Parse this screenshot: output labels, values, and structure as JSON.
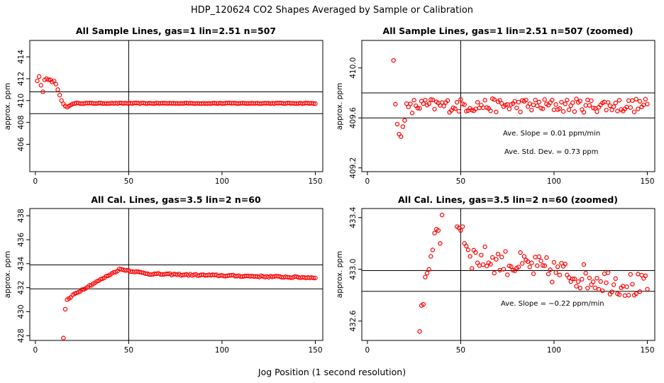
{
  "figure": {
    "title": "HDP_120624  CO2 Shapes Averaged by Sample or Calibration",
    "xlabel": "Jog Position (1 second resolution)"
  },
  "colors": {
    "points": "#ff0000",
    "lines": "#000000"
  },
  "chart_data": [
    {
      "type": "scatter",
      "title": "All Sample Lines, gas=1 lin=2.51 n=507",
      "ylabel": "approx. ppm",
      "xlim": [
        -3,
        154
      ],
      "ylim": [
        403.5,
        415.5
      ],
      "xticks": [
        0,
        50,
        100,
        150
      ],
      "xtick_labels": [
        "0",
        "50",
        "100",
        "150"
      ],
      "yticks": [
        406,
        408,
        410,
        412,
        414
      ],
      "ytick_labels": [
        "406",
        "408",
        "410",
        "412",
        "414"
      ],
      "hlines": [
        410.8,
        408.8
      ],
      "vlines": [
        50
      ],
      "annotations": [],
      "series": [
        {
          "name": "sample lines",
          "x": [],
          "y": []
        }
      ]
    },
    {
      "type": "scatter",
      "title": "All Sample Lines, gas=1 lin=2.51 n=507 (zoomed)",
      "ylabel": "approx. ppm",
      "xlim": [
        -3,
        154
      ],
      "ylim": [
        409.17,
        410.22
      ],
      "xticks": [
        0,
        50,
        100,
        150
      ],
      "xtick_labels": [
        "0",
        "50",
        "100",
        "150"
      ],
      "yticks": [
        409.2,
        409.6,
        410.0
      ],
      "ytick_labels": [
        "409.2",
        "409.6",
        "410.0"
      ],
      "hlines": [
        409.8,
        409.6
      ],
      "vlines": [
        50
      ],
      "annotations": [
        "Ave. Slope =  0.01  ppm/min",
        "Ave. Std. Dev. =  0.73  ppm"
      ],
      "series": [
        {
          "name": "sample lines (zoomed)",
          "x": [],
          "y": []
        }
      ]
    },
    {
      "type": "scatter",
      "title": "All Cal. Lines, gas=3.5 lin=2 n=60",
      "ylabel": "approx. ppm",
      "xlim": [
        -3,
        154
      ],
      "ylim": [
        427.6,
        438.6
      ],
      "xticks": [
        0,
        50,
        100,
        150
      ],
      "xtick_labels": [
        "0",
        "50",
        "100",
        "150"
      ],
      "yticks": [
        428,
        430,
        432,
        434,
        436,
        438
      ],
      "ytick_labels": [
        "428",
        "430",
        "432",
        "434",
        "436",
        "438"
      ],
      "hlines": [
        433.9,
        431.9
      ],
      "vlines": [
        50
      ],
      "annotations": [],
      "series": [
        {
          "name": "cal lines",
          "x": [],
          "y": []
        }
      ]
    },
    {
      "type": "scatter",
      "title": "All Cal. Lines, gas=3.5 lin=2 n=60 (zoomed)",
      "ylabel": "approx. ppm",
      "xlim": [
        -3,
        154
      ],
      "ylim": [
        432.45,
        433.47
      ],
      "xticks": [
        0,
        50,
        100,
        150
      ],
      "xtick_labels": [
        "0",
        "50",
        "100",
        "150"
      ],
      "yticks": [
        432.6,
        433.0,
        433.4
      ],
      "ytick_labels": [
        "432.6",
        "433.0",
        "433.4"
      ],
      "hlines": [
        432.99,
        432.83
      ],
      "vlines": [
        50
      ],
      "annotations": [
        "Ave. Slope =  −0.22  ppm/min"
      ],
      "series": [
        {
          "name": "cal lines (zoomed)",
          "x": [],
          "y": []
        }
      ]
    }
  ]
}
